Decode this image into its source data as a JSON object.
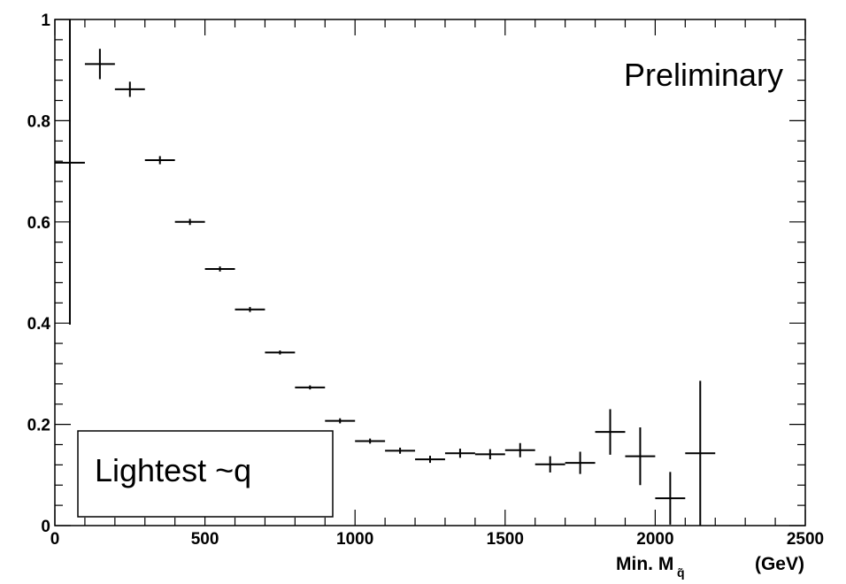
{
  "chart_data": {
    "type": "scatter",
    "title": "",
    "xlabel": "Min. M",
    "xlabel_subscript": "q̃",
    "xlabel_unit": "(GeV)",
    "ylabel": "",
    "xlim": [
      0,
      2500
    ],
    "ylim": [
      0,
      1
    ],
    "x_ticks": [
      0,
      500,
      1000,
      1500,
      2000,
      2500
    ],
    "x_tick_labels": [
      "0",
      "500",
      "1000",
      "1500",
      "2000",
      "2500"
    ],
    "y_ticks": [
      0,
      0.2,
      0.4,
      0.6,
      0.8,
      1
    ],
    "y_tick_labels": [
      "0",
      "0.2",
      "0.4",
      "0.6",
      "0.8",
      "1"
    ],
    "annotation_text": "Lightest ~q",
    "preliminary_label": "Preliminary",
    "grid": false,
    "points": [
      {
        "x": 50,
        "xerr": 50,
        "y": 0.717,
        "yerr": 0.32
      },
      {
        "x": 150,
        "xerr": 50,
        "y": 0.912,
        "yerr": 0.03
      },
      {
        "x": 250,
        "xerr": 50,
        "y": 0.862,
        "yerr": 0.015
      },
      {
        "x": 350,
        "xerr": 50,
        "y": 0.722,
        "yerr": 0.008
      },
      {
        "x": 450,
        "xerr": 50,
        "y": 0.6,
        "yerr": 0.006
      },
      {
        "x": 550,
        "xerr": 50,
        "y": 0.507,
        "yerr": 0.005
      },
      {
        "x": 650,
        "xerr": 50,
        "y": 0.427,
        "yerr": 0.005
      },
      {
        "x": 750,
        "xerr": 50,
        "y": 0.342,
        "yerr": 0.004
      },
      {
        "x": 850,
        "xerr": 50,
        "y": 0.273,
        "yerr": 0.004
      },
      {
        "x": 950,
        "xerr": 50,
        "y": 0.207,
        "yerr": 0.005
      },
      {
        "x": 1050,
        "xerr": 50,
        "y": 0.167,
        "yerr": 0.005
      },
      {
        "x": 1150,
        "xerr": 50,
        "y": 0.148,
        "yerr": 0.006
      },
      {
        "x": 1250,
        "xerr": 50,
        "y": 0.131,
        "yerr": 0.007
      },
      {
        "x": 1350,
        "xerr": 50,
        "y": 0.143,
        "yerr": 0.009
      },
      {
        "x": 1450,
        "xerr": 50,
        "y": 0.141,
        "yerr": 0.01
      },
      {
        "x": 1550,
        "xerr": 50,
        "y": 0.149,
        "yerr": 0.014
      },
      {
        "x": 1650,
        "xerr": 50,
        "y": 0.121,
        "yerr": 0.016
      },
      {
        "x": 1750,
        "xerr": 50,
        "y": 0.124,
        "yerr": 0.022
      },
      {
        "x": 1850,
        "xerr": 50,
        "y": 0.185,
        "yerr": 0.045
      },
      {
        "x": 1950,
        "xerr": 50,
        "y": 0.137,
        "yerr": 0.057
      },
      {
        "x": 2050,
        "xerr": 50,
        "y": 0.054,
        "yerr": 0.052
      },
      {
        "x": 2150,
        "xerr": 50,
        "y": 0.143,
        "yerr": 0.143
      }
    ]
  }
}
